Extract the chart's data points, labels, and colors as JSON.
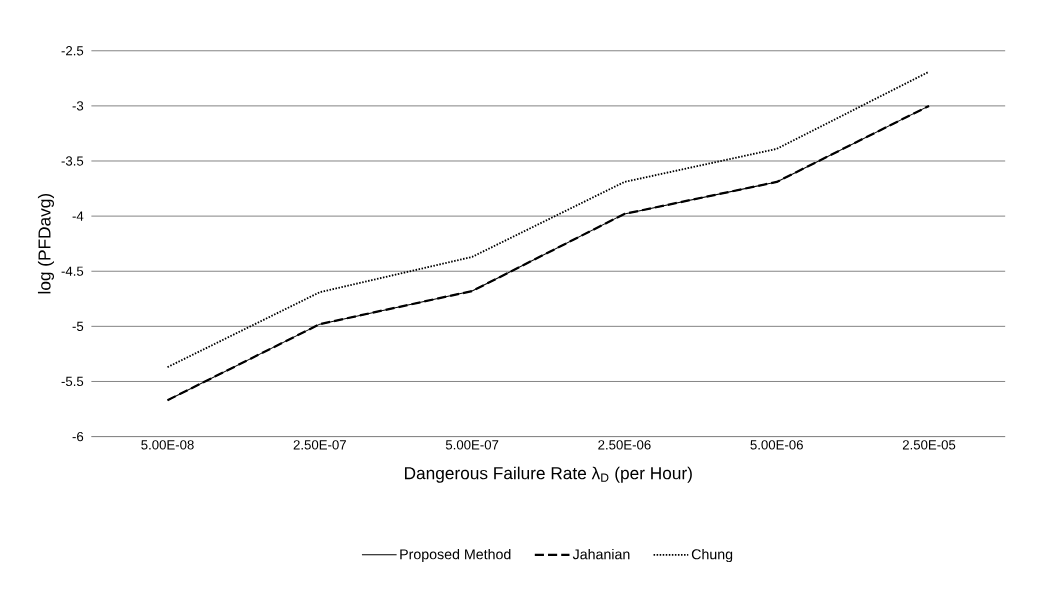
{
  "chart_data": {
    "type": "line",
    "ylabel": "log (PFDavg)",
    "xlabel": "Dangerous Failure Rate λ$_{D}$ (per Hour)",
    "categories": [
      "5.00E-08",
      "2.50E-07",
      "5.00E-07",
      "2.50E-06",
      "5.00E-06",
      "2.50E-05"
    ],
    "series": [
      {
        "name": "Proposed Method",
        "color": "#000000",
        "line_style": "solid",
        "values": [
          -5.67,
          -4.98,
          -4.68,
          -3.98,
          -3.69,
          -3.0
        ]
      },
      {
        "name": "Jahanian",
        "color": "#000000",
        "line_style": "dashed",
        "values": [
          -5.67,
          -4.98,
          -4.68,
          -3.98,
          -3.69,
          -3.0
        ]
      },
      {
        "name": "Chung",
        "color": "#000000",
        "line_style": "dotted",
        "values": [
          -5.37,
          -4.69,
          -4.37,
          -3.69,
          -3.39,
          -2.69
        ]
      }
    ],
    "ylim": [
      -6,
      -2.5
    ],
    "yticks": [
      -6,
      -5.5,
      -5,
      -4.5,
      -4,
      -3.5,
      -3,
      -2.5
    ],
    "grid": "y",
    "legend": "bottom",
    "marker": "none"
  }
}
